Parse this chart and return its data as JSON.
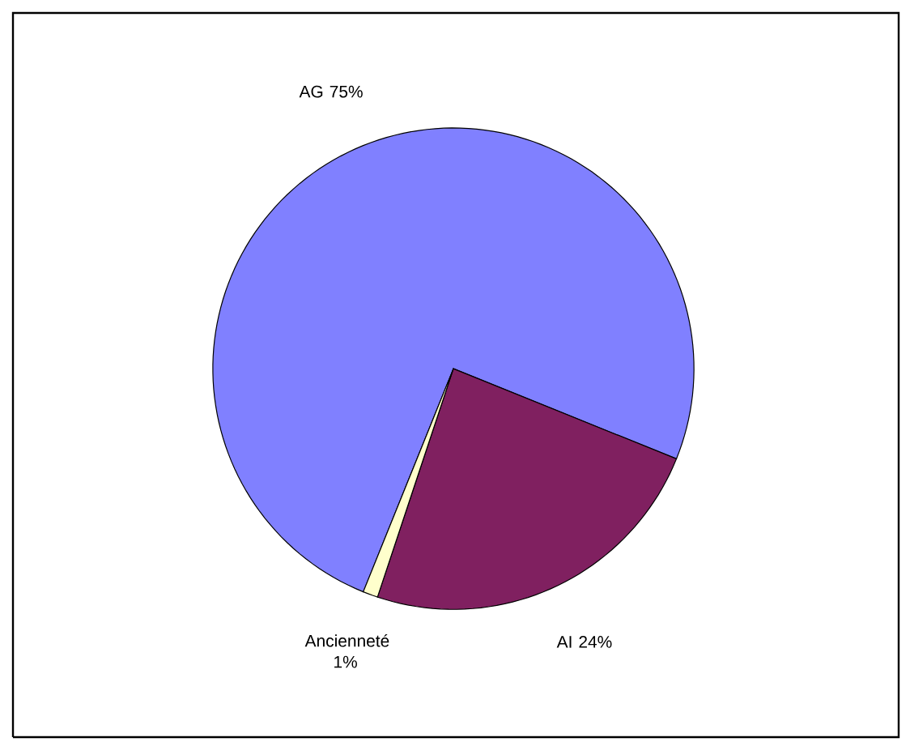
{
  "chart_data": {
    "type": "pie",
    "categories": [
      "AG",
      "AI",
      "Ancienneté"
    ],
    "values": [
      75,
      24,
      1
    ],
    "value_labels": [
      "75%",
      "24%",
      "1%"
    ],
    "colors": [
      "#8080ff",
      "#802060",
      "#ffffcc"
    ]
  }
}
